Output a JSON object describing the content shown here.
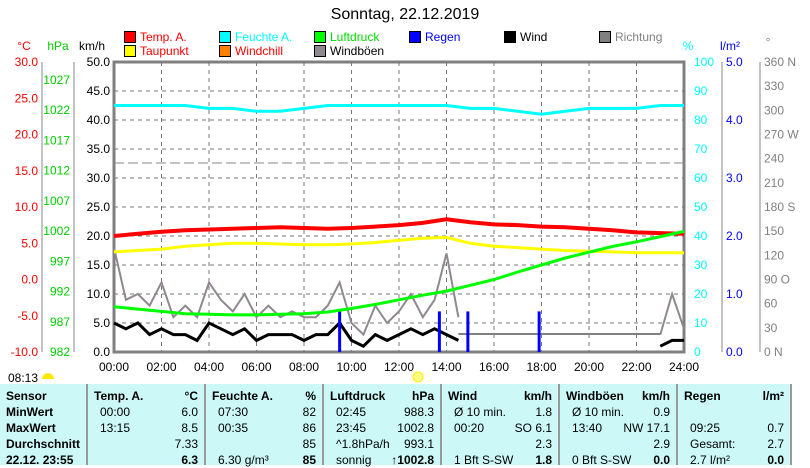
{
  "title": "Sonntag, 22.12.2019",
  "legend": [
    {
      "label": "Temp. A.",
      "color": "#ff0000",
      "text_color": "#ff0000"
    },
    {
      "label": "Feuchte A.",
      "color": "#00ffff",
      "text_color": "#00ffff"
    },
    {
      "label": "Luftdruck",
      "color": "#00ff00",
      "text_color": "#00dd00"
    },
    {
      "label": "Regen",
      "color": "#0000ff",
      "text_color": "#0000ff"
    },
    {
      "label": "Wind",
      "color": "#000000",
      "text_color": "#000000"
    },
    {
      "label": "Richtung",
      "color": "#808080",
      "text_color": "#808080"
    },
    {
      "label": "Taupunkt",
      "color": "#ffff00",
      "text_color": "#ff0000"
    },
    {
      "label": "Windchill",
      "color": "#ff8000",
      "text_color": "#ff0000"
    },
    {
      "label": "Windböen",
      "color": "#908890",
      "text_color": "#000000"
    }
  ],
  "axis_units": {
    "temp": "°C",
    "pressure": "hPa",
    "wind": "km/h",
    "humidity": "%",
    "rain": "l/m²",
    "direction": "°"
  },
  "sunrise": "08:13",
  "chart_data": {
    "type": "line",
    "title": "Sonntag, 22.12.2019",
    "x_ticks": [
      "00:00",
      "02:00",
      "04:00",
      "06:00",
      "08:00",
      "10:00",
      "12:00",
      "14:00",
      "16:00",
      "18:00",
      "20:00",
      "22:00",
      "24:00"
    ],
    "xlim": [
      0,
      24
    ],
    "temp_ticks": [
      "30.0",
      "25.0",
      "20.0",
      "15.0",
      "10.0",
      "5.0",
      "0.0",
      "-5.0",
      "-10.0"
    ],
    "pressure_ticks": [
      "1027",
      "1022",
      "1017",
      "1012",
      "1007",
      "1002",
      "997",
      "992",
      "987",
      "982"
    ],
    "wind_ticks": [
      "50.0",
      "45.0",
      "40.0",
      "35.0",
      "30.0",
      "25.0",
      "20.0",
      "15.0",
      "10.0",
      "5.0",
      "0.0"
    ],
    "humidity_ticks": [
      "100",
      "90",
      "80",
      "70",
      "60",
      "50",
      "40",
      "30",
      "20",
      "10",
      "0"
    ],
    "rain_ticks": [
      "5.0",
      "4.0",
      "3.0",
      "2.0",
      "1.0",
      "0.0"
    ],
    "direction_ticks": [
      "360 N",
      "330",
      "300",
      "270 W",
      "240",
      "210",
      "180 S",
      "150",
      "120",
      "90  O",
      "60",
      "30",
      "0    N"
    ],
    "ylim_temp": [
      -10,
      30
    ],
    "ylim_pressure": [
      982,
      1032
    ],
    "ylim_wind": [
      0,
      50
    ],
    "ylim_humidity": [
      0,
      100
    ],
    "ylim_rain": [
      0,
      5
    ],
    "hours": [
      0,
      1,
      2,
      3,
      4,
      5,
      6,
      7,
      8,
      9,
      10,
      11,
      12,
      13,
      14,
      15,
      16,
      17,
      18,
      19,
      20,
      21,
      22,
      23,
      24
    ],
    "series": [
      {
        "name": "Temp. A.",
        "color": "#ff0000",
        "axis": "temp",
        "values": [
          6.0,
          6.3,
          6.6,
          6.8,
          6.9,
          7.0,
          7.1,
          7.2,
          7.1,
          7.0,
          7.1,
          7.3,
          7.5,
          7.8,
          8.3,
          7.9,
          7.6,
          7.5,
          7.3,
          7.2,
          7.0,
          6.8,
          6.5,
          6.4,
          6.3
        ]
      },
      {
        "name": "Taupunkt",
        "color": "#ffff00",
        "axis": "temp",
        "values": [
          3.8,
          4.0,
          4.2,
          4.6,
          4.8,
          5.0,
          5.0,
          4.9,
          4.8,
          4.8,
          4.9,
          5.1,
          5.4,
          5.7,
          5.8,
          5.0,
          4.6,
          4.4,
          4.2,
          4.0,
          3.9,
          3.8,
          3.7,
          3.7,
          3.7
        ]
      },
      {
        "name": "Feuchte A.",
        "color": "#00ffff",
        "axis": "humidity",
        "values": [
          85,
          85,
          85,
          85,
          84,
          84,
          83,
          83,
          84,
          85,
          85,
          85,
          85,
          85,
          85,
          84,
          84,
          83,
          82,
          83,
          84,
          84,
          84,
          85,
          85
        ]
      },
      {
        "name": "Luftdruck",
        "color": "#00ff00",
        "axis": "pressure",
        "values": [
          989.8,
          989.4,
          989.0,
          988.6,
          988.5,
          988.4,
          988.4,
          988.5,
          988.6,
          988.9,
          989.5,
          990.2,
          991.0,
          991.8,
          992.5,
          993.5,
          994.5,
          995.8,
          997.0,
          998.2,
          999.2,
          1000.2,
          1001.0,
          1001.9,
          1002.8
        ]
      }
    ],
    "wind_half_hourly": [
      5,
      4,
      5,
      3,
      4,
      3,
      3,
      2,
      5,
      4,
      3,
      4,
      2,
      3,
      3,
      3,
      2,
      3,
      3,
      5,
      2,
      1,
      3,
      2,
      3,
      4,
      3,
      4,
      3,
      2,
      null,
      null,
      null,
      null,
      null,
      null,
      null,
      null,
      null,
      null,
      null,
      null,
      null,
      null,
      null,
      null,
      1,
      2,
      2
    ],
    "gusts_half_hourly": [
      18,
      9,
      10,
      8,
      12,
      6,
      8,
      6,
      12,
      9,
      7,
      10,
      6,
      8,
      6,
      7,
      6,
      6,
      8,
      12,
      5,
      3,
      8,
      5,
      7,
      10,
      6,
      9,
      17,
      6,
      null,
      null,
      null,
      null,
      null,
      null,
      null,
      null,
      null,
      null,
      null,
      null,
      null,
      null,
      null,
      null,
      3,
      10,
      4
    ],
    "rain_bars": [
      {
        "hour": 9.5,
        "value": 0.7
      },
      {
        "hour": 13.7,
        "value": 0.7
      },
      {
        "hour": 14.9,
        "value": 0.7
      },
      {
        "hour": 17.9,
        "value": 0.7
      }
    ]
  },
  "table": {
    "columns": [
      {
        "head": [
          "Sensor",
          ""
        ],
        "rows": [
          [
            "MinWert",
            ""
          ],
          [
            "MaxWert",
            ""
          ],
          [
            "Durchschnitt",
            ""
          ],
          [
            "22.12. 23:55",
            ""
          ]
        ]
      },
      {
        "head": [
          "Temp. A.",
          "°C"
        ],
        "rows": [
          [
            "00:00",
            "6.0"
          ],
          [
            "13:15",
            "8.5"
          ],
          [
            "",
            "7.33"
          ],
          [
            "",
            "6.3"
          ]
        ]
      },
      {
        "head": [
          "Feuchte A.",
          "%"
        ],
        "rows": [
          [
            "07:30",
            "82"
          ],
          [
            "00:35",
            "86"
          ],
          [
            "",
            "85"
          ],
          [
            "6.30 g/m³",
            "85"
          ]
        ]
      },
      {
        "head": [
          "Luftdruck",
          "hPa"
        ],
        "rows": [
          [
            "02:45",
            "988.3"
          ],
          [
            "23:45",
            "1002.8"
          ],
          [
            "^1.8hPa/h",
            "993.1"
          ],
          [
            "sonnig",
            "↑1002.8"
          ]
        ]
      },
      {
        "head": [
          "Wind",
          "km/h"
        ],
        "rows": [
          [
            "Ø 10 min.",
            "1.8"
          ],
          [
            "00:20",
            "SO 6.1"
          ],
          [
            "",
            "2.3"
          ],
          [
            "1 Bft S-SW",
            "1.8"
          ]
        ]
      },
      {
        "head": [
          "Windböen",
          "km/h"
        ],
        "rows": [
          [
            "Ø 10 min.",
            "0.9"
          ],
          [
            "13:40",
            "NW 17.1"
          ],
          [
            "",
            "2.9"
          ],
          [
            "0 Bft S-SW",
            "0.0"
          ]
        ]
      },
      {
        "head": [
          "Regen",
          "l/m²"
        ],
        "rows": [
          [
            "",
            ""
          ],
          [
            "09:25",
            "0.7"
          ],
          [
            "Gesamt:",
            "2.7"
          ],
          [
            "2.7 l/m²",
            "0.0"
          ]
        ]
      }
    ]
  }
}
